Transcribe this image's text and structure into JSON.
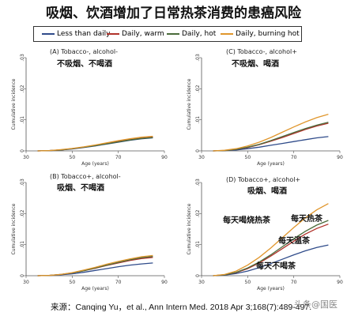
{
  "title": "吸烟、饮酒增加了日常热茶消费的患癌风险",
  "legend": [
    {
      "name": "Less than daily",
      "color": "#2f4b8a"
    },
    {
      "name": "Daily, warm",
      "color": "#b0322a"
    },
    {
      "name": "Daily, hot",
      "color": "#4a6b3a"
    },
    {
      "name": "Daily, burning hot",
      "color": "#e0962c"
    }
  ],
  "source": "来源：Canqing Yu，et al., Ann Intern Med. 2018 Apr 3;168(7):489-497.",
  "watermark": "头条@国医",
  "chart_data": [
    {
      "type": "line",
      "panel": "A",
      "title": "(A) Tobacco-, alcohol-",
      "subtitle": "不吸烟、不喝酒",
      "xlabel": "Age (years)",
      "ylabel": "Cumulative incidence",
      "xlim": [
        30,
        90
      ],
      "ylim": [
        0,
        0.03
      ],
      "x_ticks": [
        30,
        50,
        70,
        90
      ],
      "y_ticks": [
        0,
        0.01,
        0.02,
        0.03
      ],
      "y_tick_labels": [
        "0",
        ".01",
        ".02",
        ".03"
      ],
      "x": [
        35,
        40,
        45,
        50,
        55,
        60,
        65,
        70,
        75,
        80,
        85
      ],
      "series": [
        {
          "name": "Less than daily",
          "values": [
            0,
            0.0001,
            0.0003,
            0.0006,
            0.0011,
            0.0016,
            0.0022,
            0.0028,
            0.0034,
            0.0039,
            0.0042
          ]
        },
        {
          "name": "Daily, warm",
          "values": [
            0,
            0.0001,
            0.0003,
            0.0007,
            0.0012,
            0.0018,
            0.0024,
            0.003,
            0.0036,
            0.0041,
            0.0044
          ]
        },
        {
          "name": "Daily, hot",
          "values": [
            0,
            0.0001,
            0.0003,
            0.0007,
            0.0012,
            0.0017,
            0.0023,
            0.0029,
            0.0035,
            0.004,
            0.0043
          ]
        },
        {
          "name": "Daily, burning hot",
          "values": [
            0,
            0.0001,
            0.0004,
            0.0008,
            0.0013,
            0.0019,
            0.0026,
            0.0033,
            0.0039,
            0.0044,
            0.0047
          ]
        }
      ]
    },
    {
      "type": "line",
      "panel": "C",
      "title": "(C) Tobacco-, alcohol+",
      "subtitle": "不吸烟、喝酒",
      "xlabel": "Age (years)",
      "ylabel": "Cumulative incidence",
      "xlim": [
        30,
        90
      ],
      "ylim": [
        0,
        0.03
      ],
      "x_ticks": [
        30,
        50,
        70,
        90
      ],
      "y_ticks": [
        0,
        0.01,
        0.02,
        0.03
      ],
      "y_tick_labels": [
        "0",
        ".01",
        ".02",
        ".03"
      ],
      "x": [
        35,
        40,
        45,
        50,
        55,
        60,
        65,
        70,
        75,
        80,
        85
      ],
      "series": [
        {
          "name": "Less than daily",
          "values": [
            0,
            0.0001,
            0.0003,
            0.0007,
            0.0012,
            0.0018,
            0.0024,
            0.003,
            0.0036,
            0.0042,
            0.0046
          ]
        },
        {
          "name": "Daily, warm",
          "values": [
            0,
            0.0001,
            0.0005,
            0.0011,
            0.002,
            0.0031,
            0.0043,
            0.0056,
            0.0069,
            0.008,
            0.0089
          ]
        },
        {
          "name": "Daily, hot",
          "values": [
            0,
            0.0001,
            0.0005,
            0.0012,
            0.0021,
            0.0033,
            0.0046,
            0.0059,
            0.0072,
            0.0083,
            0.0092
          ]
        },
        {
          "name": "Daily, burning hot",
          "values": [
            0,
            0.0002,
            0.0007,
            0.0016,
            0.0028,
            0.0043,
            0.006,
            0.0077,
            0.0093,
            0.0107,
            0.0118
          ]
        }
      ]
    },
    {
      "type": "line",
      "panel": "B",
      "title": "(B) Tobacco+, alcohol-",
      "subtitle": "吸烟、不喝酒",
      "xlabel": "Age (years)",
      "ylabel": "Cumulative incidence",
      "xlim": [
        30,
        90
      ],
      "ylim": [
        0,
        0.03
      ],
      "x_ticks": [
        30,
        50,
        70,
        90
      ],
      "y_ticks": [
        0,
        0.01,
        0.02,
        0.03
      ],
      "y_tick_labels": [
        "0",
        ".01",
        ".02",
        ".03"
      ],
      "x": [
        35,
        40,
        45,
        50,
        55,
        60,
        65,
        70,
        75,
        80,
        85
      ],
      "series": [
        {
          "name": "Less than daily",
          "values": [
            0,
            0.0001,
            0.0003,
            0.0006,
            0.0011,
            0.0017,
            0.0023,
            0.0029,
            0.0034,
            0.0038,
            0.0041
          ]
        },
        {
          "name": "Daily, warm",
          "values": [
            0,
            0.0001,
            0.0004,
            0.0009,
            0.0016,
            0.0024,
            0.0033,
            0.0041,
            0.0049,
            0.0055,
            0.0059
          ]
        },
        {
          "name": "Daily, hot",
          "values": [
            0,
            0.0001,
            0.0004,
            0.0009,
            0.0016,
            0.0025,
            0.0034,
            0.0043,
            0.0051,
            0.0058,
            0.0062
          ]
        },
        {
          "name": "Daily, burning hot",
          "values": [
            0,
            0.0001,
            0.0004,
            0.001,
            0.0018,
            0.0027,
            0.0037,
            0.0046,
            0.0054,
            0.0061,
            0.0065
          ]
        }
      ]
    },
    {
      "type": "line",
      "panel": "D",
      "title": "(D) Tobacco+, alcohol+",
      "subtitle": "吸烟、喝酒",
      "xlabel": "Age (years)",
      "ylabel": "Cumulative incidence",
      "xlim": [
        30,
        90
      ],
      "ylim": [
        0,
        0.03
      ],
      "x_ticks": [
        30,
        50,
        70,
        90
      ],
      "y_ticks": [
        0,
        0.01,
        0.02,
        0.03
      ],
      "y_tick_labels": [
        "0",
        ".01",
        ".02",
        ".03"
      ],
      "x": [
        35,
        40,
        45,
        50,
        55,
        60,
        65,
        70,
        75,
        80,
        85
      ],
      "series": [
        {
          "name": "Less than daily",
          "values": [
            0,
            0.0002,
            0.0007,
            0.0015,
            0.0026,
            0.0039,
            0.0053,
            0.0067,
            0.008,
            0.0091,
            0.0099
          ]
        },
        {
          "name": "Daily, warm",
          "values": [
            0,
            0.0003,
            0.001,
            0.0023,
            0.0041,
            0.0063,
            0.0087,
            0.0111,
            0.0134,
            0.0152,
            0.0166
          ]
        },
        {
          "name": "Daily, hot",
          "values": [
            0,
            0.0003,
            0.0011,
            0.0025,
            0.0044,
            0.0067,
            0.0093,
            0.0119,
            0.0143,
            0.0163,
            0.0178
          ]
        },
        {
          "name": "Daily, burning hot",
          "values": [
            0,
            0.0004,
            0.0015,
            0.0034,
            0.0059,
            0.0089,
            0.0122,
            0.0155,
            0.0186,
            0.0212,
            0.0232
          ]
        }
      ],
      "annotations": [
        {
          "text": "每天喝烧热茶"
        },
        {
          "text": "每天热茶"
        },
        {
          "text": "每天温茶"
        },
        {
          "text": "每天不喝茶"
        }
      ]
    }
  ]
}
